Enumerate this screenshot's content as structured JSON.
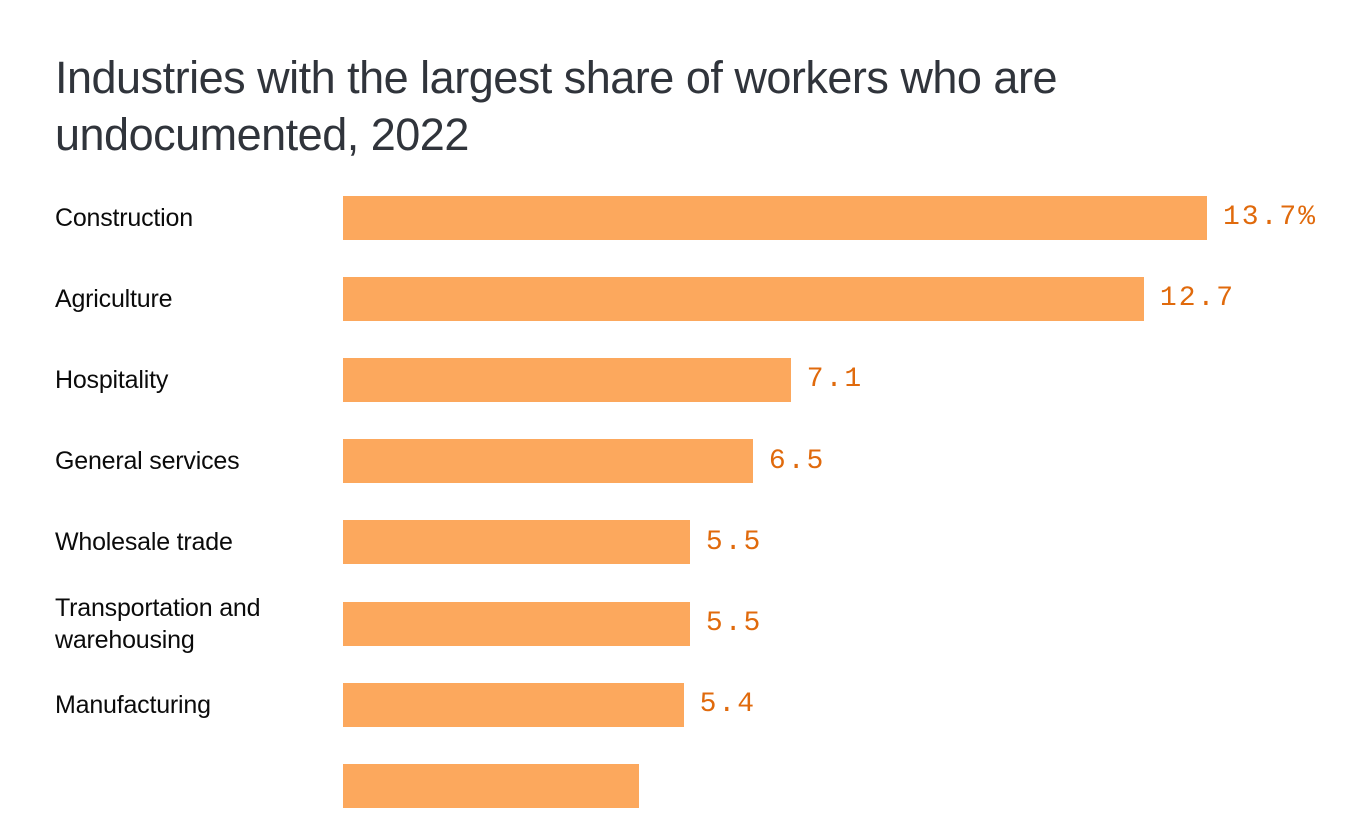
{
  "chart_data": {
    "type": "bar",
    "orientation": "horizontal",
    "title": "Industries with the largest share of workers who are undocumented, 2022",
    "title_lines": [
      "Industries with the largest share of workers who are",
      "undocumented, 2022"
    ],
    "unit": "%",
    "categories": [
      "Construction",
      "Agriculture",
      "Hospitality",
      "General services",
      "Wholesale trade",
      "Transportation and warehousing",
      "Manufacturing"
    ],
    "values": [
      13.7,
      12.7,
      7.1,
      6.5,
      5.5,
      5.5,
      5.4
    ],
    "value_labels": [
      "13.7%",
      "12.7",
      "7.1",
      "6.5",
      "5.5",
      "5.5",
      "5.4"
    ],
    "partial_bar_value": 4.7,
    "xlim": [
      0,
      13.7
    ],
    "grid": false,
    "legend": false,
    "bar_color": "#fca85d",
    "value_label_color": "#e06a0c",
    "title_color": "#30343b",
    "category_label_color": "#0b0b0b"
  }
}
